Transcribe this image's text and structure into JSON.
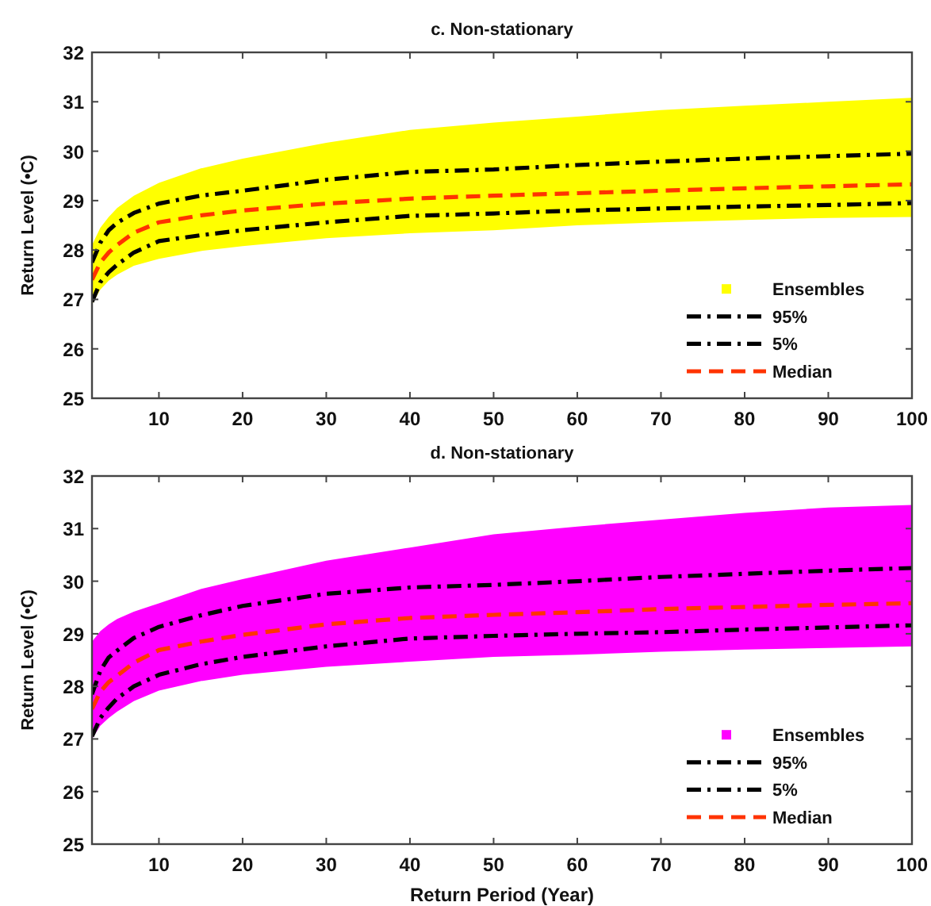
{
  "chart_data": [
    {
      "type": "line",
      "title": "c. Non-stationary",
      "ylabel": "Return Level (•C)",
      "xlim": [
        2,
        100
      ],
      "ylim": [
        25,
        32
      ],
      "xticks": [
        10,
        20,
        30,
        40,
        50,
        60,
        70,
        80,
        90,
        100
      ],
      "yticks": [
        25,
        26,
        27,
        28,
        29,
        30,
        31,
        32
      ],
      "legend": "bottom right",
      "x": [
        2,
        3,
        4,
        5,
        7,
        10,
        15,
        20,
        30,
        40,
        50,
        60,
        70,
        80,
        90,
        100
      ],
      "series": [
        {
          "name": "Ensembles",
          "type": "area",
          "color": "#ffff00",
          "values": [
            null,
            null,
            null,
            null,
            null,
            null,
            null,
            null,
            null,
            null,
            null,
            null,
            null,
            null,
            null,
            null
          ],
          "upper": [
            28.1,
            28.45,
            28.67,
            28.85,
            29.1,
            29.36,
            29.65,
            29.85,
            30.17,
            30.43,
            30.58,
            30.7,
            30.83,
            30.92,
            31.0,
            31.08
          ],
          "lower": [
            26.9,
            27.2,
            27.38,
            27.5,
            27.68,
            27.82,
            27.98,
            28.08,
            28.24,
            28.34,
            28.4,
            28.5,
            28.56,
            28.61,
            28.65,
            28.67
          ]
        },
        {
          "name": "95%",
          "color": "#000000",
          "line_style": "dashdot",
          "values": [
            27.75,
            28.15,
            28.4,
            28.55,
            28.75,
            28.94,
            29.1,
            29.2,
            29.42,
            29.58,
            29.63,
            29.72,
            29.79,
            29.85,
            29.9,
            29.95
          ]
        },
        {
          "name": "5%",
          "color": "#000000",
          "line_style": "dashdot",
          "values": [
            26.95,
            27.35,
            27.55,
            27.7,
            27.95,
            28.18,
            28.3,
            28.4,
            28.56,
            28.69,
            28.74,
            28.8,
            28.84,
            28.88,
            28.91,
            28.95
          ]
        },
        {
          "name": "Median",
          "color": "#ff3300",
          "line_style": "dashed",
          "values": [
            27.4,
            27.75,
            27.95,
            28.1,
            28.35,
            28.56,
            28.7,
            28.8,
            28.94,
            29.04,
            29.1,
            29.15,
            29.2,
            29.25,
            29.29,
            29.33
          ]
        }
      ]
    },
    {
      "type": "line",
      "title": "d. Non-stationary",
      "xlabel": "Return Period (Year)",
      "ylabel": "Return Level (•C)",
      "xlim": [
        2,
        100
      ],
      "ylim": [
        25,
        32
      ],
      "xticks": [
        10,
        20,
        30,
        40,
        50,
        60,
        70,
        80,
        90,
        100
      ],
      "yticks": [
        25,
        26,
        27,
        28,
        29,
        30,
        31,
        32
      ],
      "legend": "bottom right",
      "x": [
        2,
        3,
        4,
        5,
        7,
        10,
        15,
        20,
        30,
        40,
        50,
        60,
        70,
        80,
        90,
        100
      ],
      "series": [
        {
          "name": "Ensembles",
          "type": "area",
          "color": "#ff00ff",
          "values": [
            null,
            null,
            null,
            null,
            null,
            null,
            null,
            null,
            null,
            null,
            null,
            null,
            null,
            null,
            null,
            null
          ],
          "upper": [
            28.85,
            29.05,
            29.18,
            29.28,
            29.42,
            29.58,
            29.85,
            30.04,
            30.39,
            30.64,
            30.89,
            31.04,
            31.17,
            31.3,
            31.4,
            31.45
          ],
          "lower": [
            27.0,
            27.25,
            27.4,
            27.52,
            27.72,
            27.92,
            28.1,
            28.22,
            28.37,
            28.47,
            28.56,
            28.6,
            28.66,
            28.7,
            28.73,
            28.76
          ]
        },
        {
          "name": "95%",
          "color": "#000000",
          "line_style": "dashdot",
          "values": [
            27.85,
            28.3,
            28.55,
            28.68,
            28.92,
            29.13,
            29.35,
            29.53,
            29.76,
            29.88,
            29.93,
            30.0,
            30.08,
            30.14,
            30.2,
            30.25
          ]
        },
        {
          "name": "5%",
          "color": "#000000",
          "line_style": "dashdot",
          "values": [
            27.05,
            27.4,
            27.6,
            27.77,
            28.0,
            28.22,
            28.42,
            28.56,
            28.76,
            28.91,
            28.96,
            29.0,
            29.03,
            29.08,
            29.12,
            29.16
          ]
        },
        {
          "name": "Median",
          "color": "#ff3300",
          "line_style": "dashed",
          "values": [
            27.57,
            27.9,
            28.08,
            28.2,
            28.45,
            28.69,
            28.85,
            28.98,
            29.18,
            29.3,
            29.36,
            29.41,
            29.47,
            29.51,
            29.55,
            29.58
          ]
        }
      ]
    }
  ]
}
